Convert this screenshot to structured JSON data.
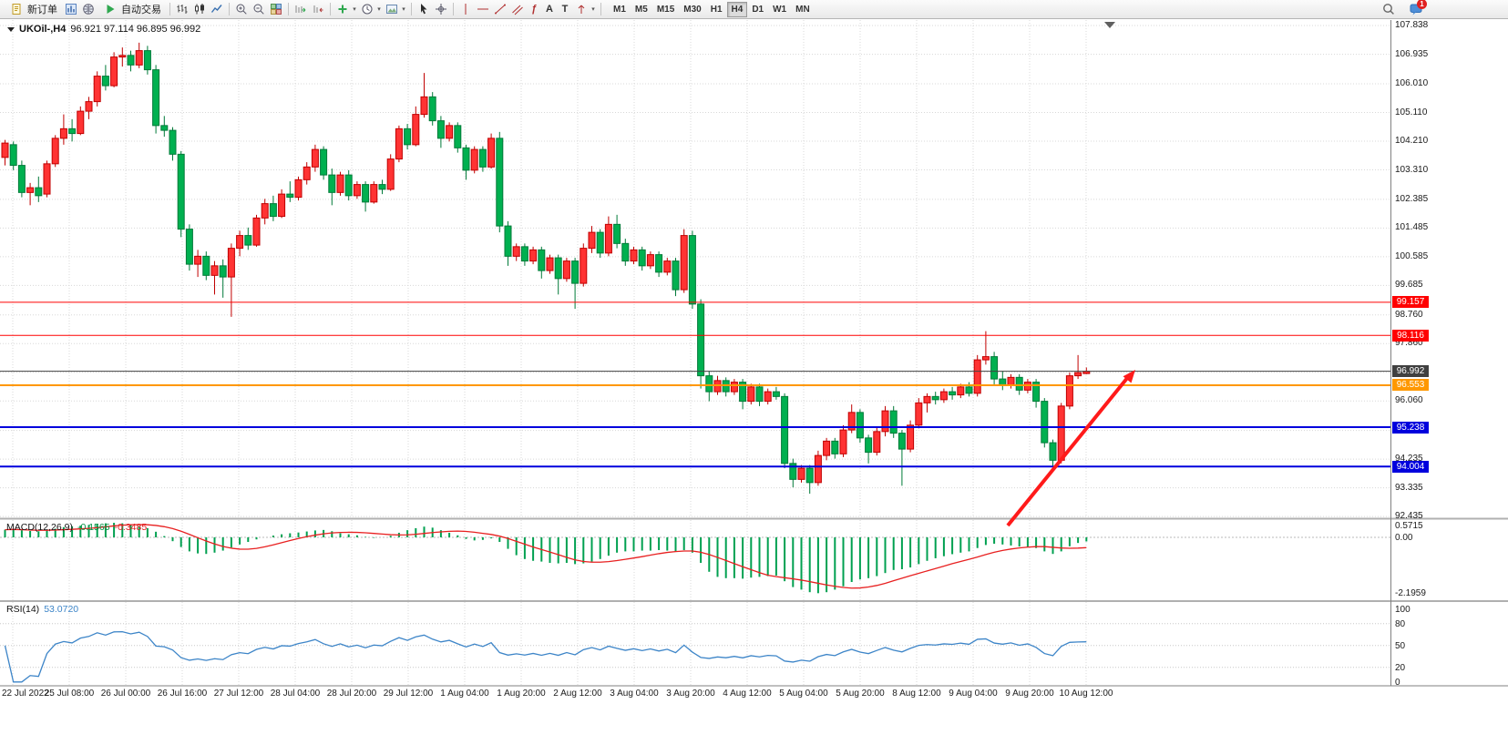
{
  "toolbar": {
    "new_order_label": "新订单",
    "auto_trading_label": "自动交易",
    "timeframes": [
      "M1",
      "M5",
      "M15",
      "M30",
      "H1",
      "H4",
      "D1",
      "W1",
      "MN"
    ],
    "active_timeframe": "H4",
    "notification_badge": "1"
  },
  "chart": {
    "symbol_label": "UKOil-,H4",
    "ohlc_label": "96.921 97.114 96.895 96.992",
    "price_axis_labels": [
      "107.838",
      "106.935",
      "106.010",
      "105.110",
      "104.210",
      "103.310",
      "102.385",
      "101.485",
      "100.585",
      "99.685",
      "98.760",
      "97.860",
      "96.060",
      "94.235",
      "93.335",
      "92.435"
    ],
    "time_axis_labels": [
      "22 Jul 2022",
      "25 Jul 08:00",
      "26 Jul 00:00",
      "26 Jul 16:00",
      "27 Jul 12:00",
      "28 Jul 04:00",
      "28 Jul 20:00",
      "29 Jul 12:00",
      "1 Aug 04:00",
      "1 Aug 20:00",
      "2 Aug 12:00",
      "3 Aug 04:00",
      "3 Aug 20:00",
      "4 Aug 12:00",
      "5 Aug 04:00",
      "5 Aug 20:00",
      "8 Aug 12:00",
      "9 Aug 04:00",
      "9 Aug 20:00",
      "10 Aug 12:00"
    ],
    "price_lines": [
      {
        "label": "99.157",
        "price": 99.157,
        "color": "#ff0000",
        "width": 1
      },
      {
        "label": "98.116",
        "price": 98.116,
        "color": "#ff0000",
        "width": 1
      },
      {
        "label": "96.992",
        "price": 96.992,
        "color": "#404040",
        "width": 1
      },
      {
        "label": "96.553",
        "price": 96.553,
        "color": "#ff9800",
        "width": 2
      },
      {
        "label": "95.238",
        "price": 95.238,
        "color": "#0000dd",
        "width": 2
      },
      {
        "label": "94.004",
        "price": 94.004,
        "color": "#0000dd",
        "width": 2
      }
    ]
  },
  "macd_panel": {
    "name": "MACD(12,26,9)",
    "value_main": "-0.1565",
    "value_signal": "-0.3485",
    "axis_labels": [
      "0.5715",
      "0.00",
      "-2.1959"
    ]
  },
  "rsi_panel": {
    "name": "RSI(14)",
    "value": "53.0720",
    "axis_labels": [
      "100",
      "80",
      "50",
      "20",
      "0"
    ],
    "levels": [
      80,
      50,
      20
    ]
  },
  "chart_data": {
    "type": "candlestick",
    "symbol": "UKOil-",
    "timeframe": "H4",
    "up_color": "#ff3333",
    "down_color": "#00b050",
    "price_range": [
      92.2,
      108.01
    ],
    "h_grid_prices": [
      107.838,
      106.935,
      106.01,
      105.11,
      104.21,
      103.31,
      102.385,
      101.485,
      100.585,
      99.685,
      98.76,
      97.86,
      96.96,
      96.06,
      95.135,
      94.235,
      93.335,
      92.435
    ],
    "candles": [
      [
        103.7,
        104.25,
        103.45,
        104.15
      ],
      [
        104.1,
        104.2,
        103.3,
        103.45
      ],
      [
        103.45,
        103.6,
        102.45,
        102.6
      ],
      [
        102.6,
        102.9,
        102.2,
        102.75
      ],
      [
        102.75,
        103.1,
        102.3,
        102.5
      ],
      [
        102.55,
        103.6,
        102.45,
        103.5
      ],
      [
        103.5,
        104.4,
        103.4,
        104.3
      ],
      [
        104.3,
        105.05,
        104.1,
        104.6
      ],
      [
        104.6,
        104.9,
        104.2,
        104.45
      ],
      [
        104.45,
        105.3,
        104.4,
        105.15
      ],
      [
        105.15,
        105.6,
        104.9,
        105.45
      ],
      [
        105.45,
        106.4,
        105.3,
        106.25
      ],
      [
        106.25,
        106.6,
        105.8,
        105.95
      ],
      [
        105.95,
        107.0,
        105.9,
        106.85
      ],
      [
        106.85,
        107.15,
        106.55,
        106.9
      ],
      [
        106.9,
        107.05,
        106.4,
        106.6
      ],
      [
        106.6,
        107.3,
        106.5,
        107.05
      ],
      [
        107.05,
        107.2,
        106.3,
        106.45
      ],
      [
        106.45,
        106.6,
        104.45,
        104.7
      ],
      [
        104.7,
        105.0,
        104.35,
        104.55
      ],
      [
        104.55,
        104.65,
        103.6,
        103.8
      ],
      [
        103.8,
        103.9,
        101.2,
        101.45
      ],
      [
        101.45,
        101.6,
        100.15,
        100.35
      ],
      [
        100.35,
        100.8,
        99.95,
        100.6
      ],
      [
        100.6,
        100.75,
        99.85,
        100.0
      ],
      [
        100.0,
        100.45,
        99.4,
        100.3
      ],
      [
        100.3,
        100.5,
        99.3,
        99.95
      ],
      [
        99.95,
        101.0,
        98.7,
        100.85
      ],
      [
        100.85,
        101.4,
        100.6,
        101.25
      ],
      [
        101.25,
        101.5,
        100.8,
        100.95
      ],
      [
        100.95,
        101.9,
        100.9,
        101.8
      ],
      [
        101.8,
        102.4,
        101.6,
        102.25
      ],
      [
        102.25,
        102.5,
        101.7,
        101.85
      ],
      [
        101.85,
        102.7,
        101.8,
        102.55
      ],
      [
        102.55,
        102.95,
        102.3,
        102.45
      ],
      [
        102.45,
        103.1,
        102.35,
        103.0
      ],
      [
        103.0,
        103.55,
        102.85,
        103.4
      ],
      [
        103.4,
        104.1,
        103.25,
        103.95
      ],
      [
        103.95,
        104.05,
        103.0,
        103.15
      ],
      [
        103.15,
        103.35,
        102.2,
        102.6
      ],
      [
        102.6,
        103.25,
        102.5,
        103.15
      ],
      [
        103.15,
        103.3,
        102.35,
        102.5
      ],
      [
        102.5,
        102.95,
        102.4,
        102.85
      ],
      [
        102.85,
        102.95,
        102.0,
        102.3
      ],
      [
        102.3,
        102.95,
        102.25,
        102.85
      ],
      [
        102.85,
        103.0,
        102.55,
        102.7
      ],
      [
        102.7,
        103.8,
        102.65,
        103.65
      ],
      [
        103.65,
        104.7,
        103.55,
        104.6
      ],
      [
        104.6,
        104.75,
        103.95,
        104.1
      ],
      [
        104.1,
        105.3,
        104.05,
        105.05
      ],
      [
        105.05,
        106.35,
        104.95,
        105.6
      ],
      [
        105.6,
        105.75,
        104.7,
        104.85
      ],
      [
        104.85,
        105.0,
        104.0,
        104.3
      ],
      [
        104.3,
        104.8,
        104.2,
        104.7
      ],
      [
        104.7,
        104.8,
        103.85,
        104.0
      ],
      [
        104.0,
        104.1,
        103.0,
        103.3
      ],
      [
        103.3,
        104.05,
        103.2,
        103.95
      ],
      [
        103.95,
        104.05,
        103.25,
        103.4
      ],
      [
        103.4,
        104.45,
        103.35,
        104.3
      ],
      [
        104.3,
        104.5,
        101.35,
        101.55
      ],
      [
        101.55,
        101.7,
        100.3,
        100.6
      ],
      [
        100.6,
        101.0,
        100.45,
        100.9
      ],
      [
        100.9,
        101.0,
        100.3,
        100.45
      ],
      [
        100.45,
        100.9,
        100.35,
        100.8
      ],
      [
        100.8,
        100.9,
        99.9,
        100.15
      ],
      [
        100.15,
        100.65,
        100.05,
        100.55
      ],
      [
        100.55,
        100.65,
        99.4,
        99.9
      ],
      [
        99.9,
        100.55,
        99.8,
        100.45
      ],
      [
        100.45,
        100.55,
        98.95,
        99.75
      ],
      [
        99.75,
        101.0,
        99.65,
        100.85
      ],
      [
        100.85,
        101.55,
        100.7,
        101.35
      ],
      [
        101.35,
        101.45,
        100.55,
        100.7
      ],
      [
        100.7,
        101.85,
        100.6,
        101.6
      ],
      [
        101.6,
        101.9,
        100.85,
        101.0
      ],
      [
        101.0,
        101.15,
        100.3,
        100.45
      ],
      [
        100.45,
        100.9,
        100.35,
        100.8
      ],
      [
        100.8,
        100.9,
        100.15,
        100.3
      ],
      [
        100.3,
        100.75,
        100.2,
        100.65
      ],
      [
        100.65,
        100.75,
        99.95,
        100.1
      ],
      [
        100.1,
        100.55,
        100.0,
        100.45
      ],
      [
        100.45,
        100.55,
        99.35,
        99.55
      ],
      [
        99.55,
        101.45,
        99.45,
        101.25
      ],
      [
        101.25,
        101.4,
        98.95,
        99.1
      ],
      [
        99.1,
        99.25,
        96.45,
        96.85
      ],
      [
        96.85,
        97.0,
        96.05,
        96.35
      ],
      [
        96.35,
        96.85,
        96.25,
        96.7
      ],
      [
        96.7,
        96.8,
        96.2,
        96.35
      ],
      [
        96.35,
        96.75,
        96.25,
        96.65
      ],
      [
        96.65,
        96.75,
        95.8,
        96.05
      ],
      [
        96.05,
        96.6,
        95.95,
        96.5
      ],
      [
        96.5,
        96.6,
        95.9,
        96.05
      ],
      [
        96.05,
        96.45,
        95.95,
        96.35
      ],
      [
        96.35,
        96.5,
        96.1,
        96.2
      ],
      [
        96.2,
        96.3,
        93.95,
        94.1
      ],
      [
        94.1,
        94.25,
        93.35,
        93.6
      ],
      [
        93.6,
        94.05,
        93.5,
        93.95
      ],
      [
        93.95,
        94.05,
        93.15,
        93.5
      ],
      [
        93.5,
        94.5,
        93.4,
        94.35
      ],
      [
        94.35,
        94.9,
        94.2,
        94.8
      ],
      [
        94.8,
        94.9,
        94.25,
        94.4
      ],
      [
        94.4,
        95.3,
        94.3,
        95.15
      ],
      [
        95.15,
        95.95,
        95.05,
        95.7
      ],
      [
        95.7,
        95.8,
        94.75,
        94.9
      ],
      [
        94.9,
        95.0,
        94.1,
        94.45
      ],
      [
        94.45,
        95.25,
        94.35,
        95.1
      ],
      [
        95.1,
        95.9,
        94.95,
        95.75
      ],
      [
        95.75,
        95.9,
        94.9,
        95.05
      ],
      [
        95.05,
        95.15,
        93.4,
        94.55
      ],
      [
        94.55,
        95.45,
        94.45,
        95.3
      ],
      [
        95.3,
        96.15,
        95.2,
        96.0
      ],
      [
        96.0,
        96.3,
        95.7,
        96.2
      ],
      [
        96.2,
        96.35,
        95.95,
        96.1
      ],
      [
        96.1,
        96.45,
        96.0,
        96.35
      ],
      [
        96.35,
        96.5,
        96.1,
        96.25
      ],
      [
        96.25,
        96.6,
        96.15,
        96.5
      ],
      [
        96.5,
        96.65,
        96.2,
        96.3
      ],
      [
        96.3,
        97.5,
        96.2,
        97.35
      ],
      [
        97.35,
        98.25,
        97.2,
        97.45
      ],
      [
        97.45,
        97.6,
        96.55,
        96.75
      ],
      [
        96.75,
        97.0,
        96.4,
        96.55
      ],
      [
        96.55,
        96.9,
        96.45,
        96.8
      ],
      [
        96.8,
        96.9,
        96.25,
        96.4
      ],
      [
        96.4,
        96.75,
        96.3,
        96.65
      ],
      [
        96.65,
        96.75,
        95.85,
        96.05
      ],
      [
        96.05,
        96.15,
        94.6,
        94.75
      ],
      [
        94.75,
        94.85,
        93.9,
        94.2
      ],
      [
        94.2,
        96.0,
        94.1,
        95.9
      ],
      [
        95.9,
        96.95,
        95.8,
        96.85
      ],
      [
        96.85,
        97.5,
        96.75,
        96.95
      ],
      [
        96.92,
        97.11,
        96.9,
        96.99
      ]
    ],
    "macd_hist": [
      0.3,
      0.32,
      0.28,
      0.25,
      0.24,
      0.28,
      0.34,
      0.4,
      0.43,
      0.46,
      0.49,
      0.52,
      0.55,
      0.57,
      0.55,
      0.5,
      0.44,
      0.36,
      0.22,
      0.05,
      -0.15,
      -0.38,
      -0.55,
      -0.63,
      -0.65,
      -0.6,
      -0.52,
      -0.4,
      -0.28,
      -0.18,
      -0.08,
      0.0,
      0.07,
      0.12,
      0.16,
      0.19,
      0.23,
      0.27,
      0.29,
      0.24,
      0.16,
      0.12,
      0.08,
      0.02,
      -0.02,
      0.0,
      0.06,
      0.18,
      0.28,
      0.36,
      0.42,
      0.38,
      0.28,
      0.18,
      0.08,
      -0.06,
      -0.12,
      -0.1,
      -0.04,
      -0.18,
      -0.45,
      -0.7,
      -0.85,
      -0.92,
      -0.95,
      -1.0,
      -1.02,
      -1.0,
      -1.05,
      -1.02,
      -0.95,
      -0.85,
      -0.72,
      -0.6,
      -0.55,
      -0.55,
      -0.52,
      -0.52,
      -0.5,
      -0.52,
      -0.55,
      -0.5,
      -0.6,
      -1.0,
      -1.35,
      -1.55,
      -1.6,
      -1.6,
      -1.62,
      -1.58,
      -1.55,
      -1.52,
      -1.5,
      -1.72,
      -1.95,
      -2.05,
      -2.15,
      -2.19,
      -2.15,
      -2.05,
      -1.92,
      -1.75,
      -1.65,
      -1.6,
      -1.52,
      -1.4,
      -1.28,
      -1.25,
      -1.18,
      -1.05,
      -0.92,
      -0.82,
      -0.74,
      -0.66,
      -0.6,
      -0.55,
      -0.42,
      -0.3,
      -0.25,
      -0.28,
      -0.32,
      -0.36,
      -0.38,
      -0.42,
      -0.55,
      -0.65,
      -0.55,
      -0.35,
      -0.22,
      -0.16
    ],
    "annotations": [
      {
        "type": "arrow",
        "direction": "up-right",
        "color": "#ff1a1a"
      }
    ]
  }
}
